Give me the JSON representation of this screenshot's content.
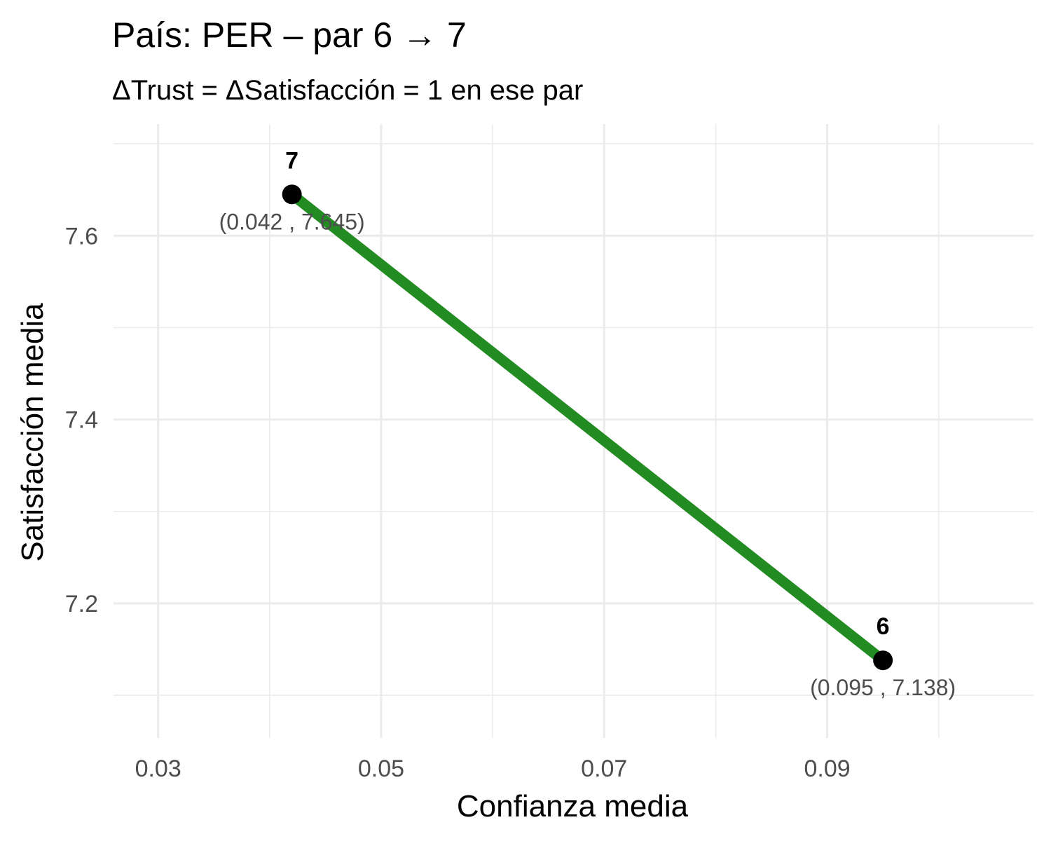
{
  "chart_data": {
    "type": "line",
    "title": "País: PER – par 6 → 7",
    "subtitle": "ΔTrust = ΔSatisfacción = 1 en ese par",
    "xlabel": "Confianza media",
    "ylabel": "Satisfacción media",
    "xlim": [
      0.026,
      0.1085
    ],
    "ylim": [
      7.0535,
      7.7215
    ],
    "x_ticks": [
      0.03,
      0.05,
      0.07,
      0.09
    ],
    "x_tick_labels": [
      "0.03",
      "0.05",
      "0.07",
      "0.09"
    ],
    "x_minor_ticks": [
      0.04,
      0.06,
      0.08,
      0.1
    ],
    "y_ticks": [
      7.2,
      7.4,
      7.6
    ],
    "y_tick_labels": [
      "7.2",
      "7.4",
      "7.6"
    ],
    "y_minor_ticks": [
      7.1,
      7.3,
      7.5,
      7.7
    ],
    "grid": true,
    "legend": "none",
    "line_color": "#228b22",
    "point_color": "#000000",
    "points": [
      {
        "label": "6",
        "x": 0.095,
        "y": 7.138,
        "coord_label": "(0.095 , 7.138)"
      },
      {
        "label": "7",
        "x": 0.042,
        "y": 7.645,
        "coord_label": "(0.042 , 7.645)"
      }
    ]
  }
}
